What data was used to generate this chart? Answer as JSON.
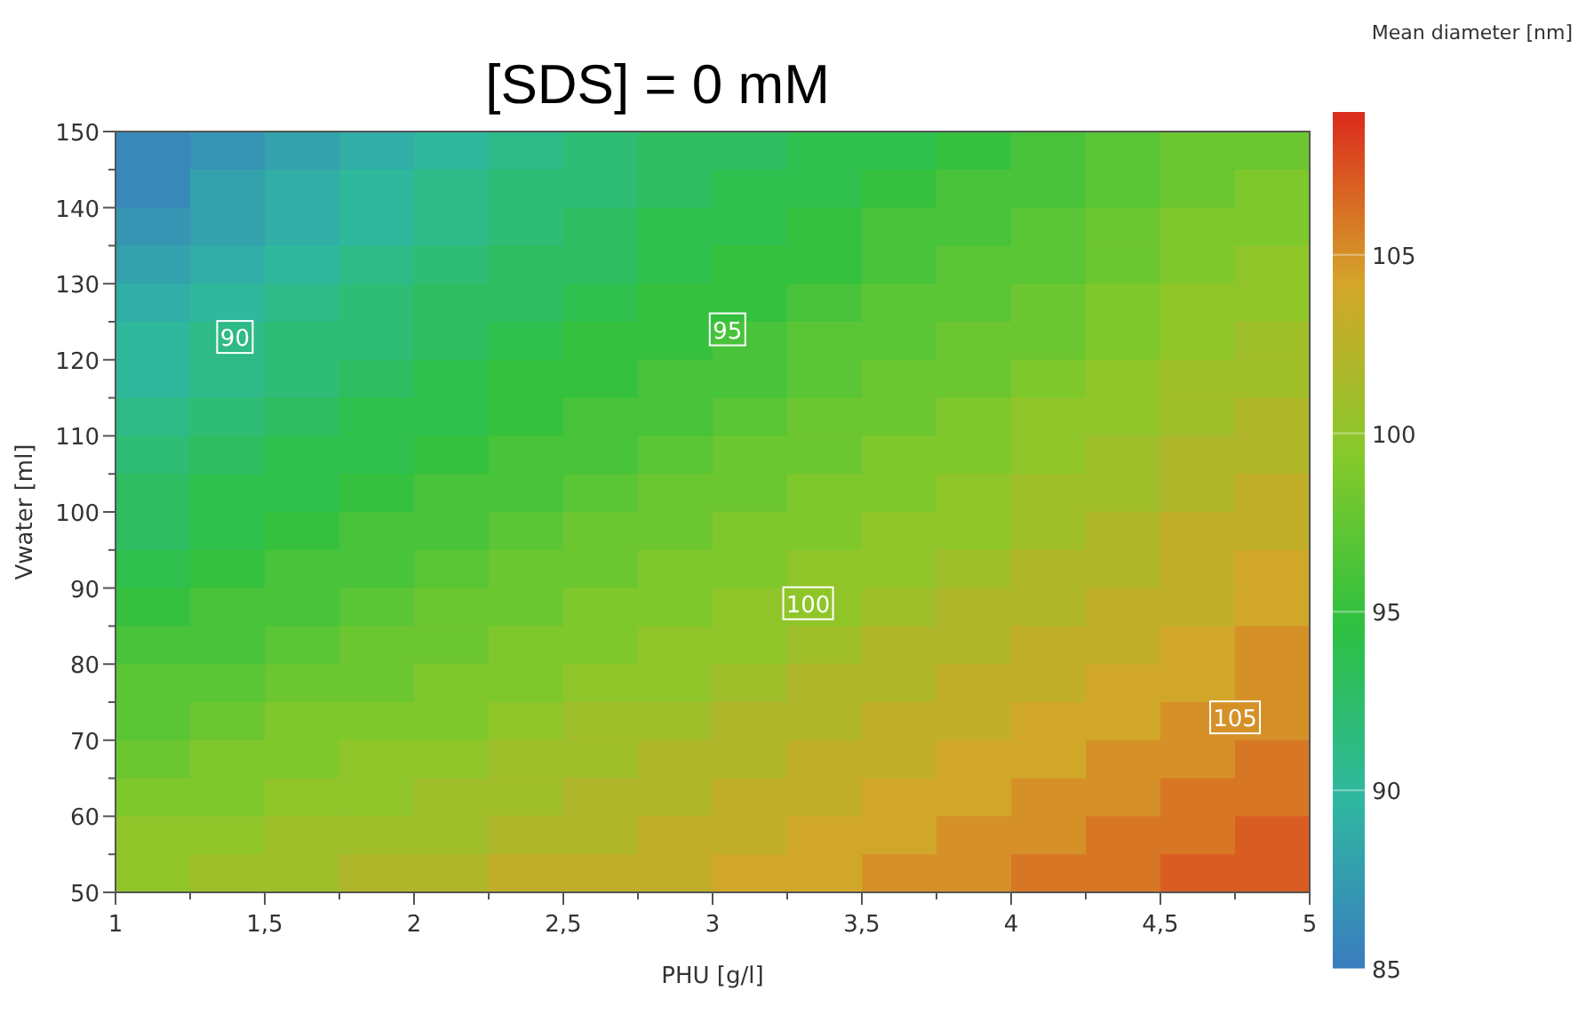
{
  "chart_data": {
    "type": "heatmap",
    "title": "[SDS] = 0 mM",
    "xlabel": "PHU [g/l]",
    "ylabel": "Vwater [ml]",
    "clabel": "Mean diameter [nm]",
    "x": [
      1.125,
      1.375,
      1.625,
      1.875,
      2.125,
      2.375,
      2.625,
      2.875,
      3.125,
      3.375,
      3.625,
      3.875,
      4.125,
      4.375,
      4.625,
      4.875
    ],
    "y": [
      147.5,
      142.5,
      137.5,
      132.5,
      127.5,
      122.5,
      117.5,
      112.5,
      107.5,
      102.5,
      97.5,
      92.5,
      87.5,
      82.5,
      77.5,
      72.5,
      67.5,
      62.5,
      57.5,
      52.5
    ],
    "xlim": [
      1,
      5
    ],
    "xticks": [
      1,
      {
        "value": 1.25,
        "label": null
      },
      {
        "value": 1.5,
        "label": "1,5"
      },
      {
        "value": 1.75,
        "label": null
      },
      2,
      {
        "value": 2.25,
        "label": null
      },
      {
        "value": 2.5,
        "label": "2,5"
      },
      {
        "value": 2.75,
        "label": null
      },
      3,
      {
        "value": 3.25,
        "label": null
      },
      {
        "value": 3.5,
        "label": "3,5"
      },
      {
        "value": 3.75,
        "label": null
      },
      4,
      {
        "value": 4.25,
        "label": null
      },
      {
        "value": 4.5,
        "label": "4,5"
      },
      {
        "value": 4.75,
        "label": null
      },
      5
    ],
    "ylim": [
      50,
      150
    ],
    "yticks": [
      50,
      {
        "value": 55,
        "label": null
      },
      60,
      {
        "value": 65,
        "label": null
      },
      70,
      {
        "value": 75,
        "label": null
      },
      80,
      {
        "value": 85,
        "label": null
      },
      90,
      {
        "value": 95,
        "label": null
      },
      100,
      {
        "value": 105,
        "label": null
      },
      110,
      {
        "value": 115,
        "label": null
      },
      120,
      {
        "value": 125,
        "label": null
      },
      130,
      {
        "value": 135,
        "label": null
      },
      140,
      {
        "value": 145,
        "label": null
      },
      150
    ],
    "clim": [
      85,
      109
    ],
    "cticks": [
      85,
      90,
      95,
      100,
      105
    ],
    "colors": [
      "#3a7cc0",
      "#2fb8a0",
      "#2ec040",
      "#86c92a",
      "#d4a52a",
      "#dc2a1c"
    ],
    "cells": [
      [
        86,
        87,
        88,
        89,
        90,
        91,
        92,
        93,
        93,
        94,
        94,
        95,
        96,
        97,
        98,
        98
      ],
      [
        86,
        88,
        89,
        90,
        91,
        92,
        92,
        93,
        94,
        94,
        95,
        96,
        96,
        97,
        98,
        99
      ],
      [
        87,
        88,
        89,
        90,
        91,
        92,
        93,
        94,
        94,
        95,
        96,
        96,
        97,
        98,
        99,
        99
      ],
      [
        88,
        89,
        90,
        91,
        92,
        93,
        93,
        94,
        95,
        95,
        96,
        97,
        97,
        98,
        99,
        100
      ],
      [
        89,
        90,
        91,
        92,
        93,
        93,
        94,
        95,
        95,
        96,
        97,
        97,
        98,
        99,
        100,
        100
      ],
      [
        90,
        91,
        92,
        92,
        93,
        94,
        95,
        95,
        96,
        97,
        97,
        98,
        98,
        99,
        100,
        101
      ],
      [
        90,
        91,
        92,
        93,
        94,
        95,
        95,
        96,
        96,
        97,
        98,
        98,
        99,
        100,
        101,
        101
      ],
      [
        91,
        92,
        93,
        94,
        94,
        95,
        96,
        96,
        97,
        98,
        98,
        99,
        100,
        100,
        101,
        102
      ],
      [
        92,
        93,
        94,
        94,
        95,
        96,
        96,
        97,
        98,
        98,
        99,
        99,
        100,
        101,
        102,
        102
      ],
      [
        93,
        94,
        94,
        95,
        96,
        96,
        97,
        98,
        98,
        99,
        99,
        100,
        101,
        101,
        102,
        103
      ],
      [
        93,
        94,
        95,
        96,
        96,
        97,
        98,
        98,
        99,
        99,
        100,
        100,
        101,
        102,
        103,
        103
      ],
      [
        94,
        95,
        96,
        96,
        97,
        98,
        98,
        99,
        99,
        100,
        100,
        101,
        102,
        102,
        103,
        104
      ],
      [
        95,
        96,
        96,
        97,
        98,
        98,
        99,
        99,
        100,
        100,
        101,
        102,
        102,
        103,
        103,
        104
      ],
      [
        96,
        96,
        97,
        98,
        98,
        99,
        99,
        100,
        100,
        101,
        102,
        102,
        103,
        103,
        104,
        105
      ],
      [
        97,
        97,
        98,
        98,
        99,
        99,
        100,
        100,
        101,
        102,
        102,
        103,
        103,
        104,
        104,
        105
      ],
      [
        97,
        98,
        99,
        99,
        99,
        100,
        101,
        101,
        102,
        102,
        103,
        103,
        104,
        104,
        105,
        105
      ],
      [
        98,
        99,
        99,
        100,
        100,
        101,
        101,
        102,
        102,
        103,
        103,
        104,
        104,
        105,
        105,
        106
      ],
      [
        99,
        99,
        100,
        100,
        101,
        101,
        102,
        102,
        103,
        103,
        104,
        104,
        105,
        105,
        106,
        106
      ],
      [
        100,
        100,
        101,
        101,
        101,
        102,
        102,
        103,
        103,
        104,
        104,
        105,
        105,
        106,
        106,
        107
      ],
      [
        100,
        101,
        101,
        102,
        102,
        103,
        103,
        103,
        104,
        104,
        105,
        105,
        106,
        106,
        107,
        107
      ]
    ],
    "annotations": [
      {
        "text": "90",
        "x": 1.4,
        "y": 123
      },
      {
        "text": "95",
        "x": 3.05,
        "y": 124
      },
      {
        "text": "100",
        "x": 3.32,
        "y": 88
      },
      {
        "text": "105",
        "x": 4.75,
        "y": 73
      }
    ]
  }
}
